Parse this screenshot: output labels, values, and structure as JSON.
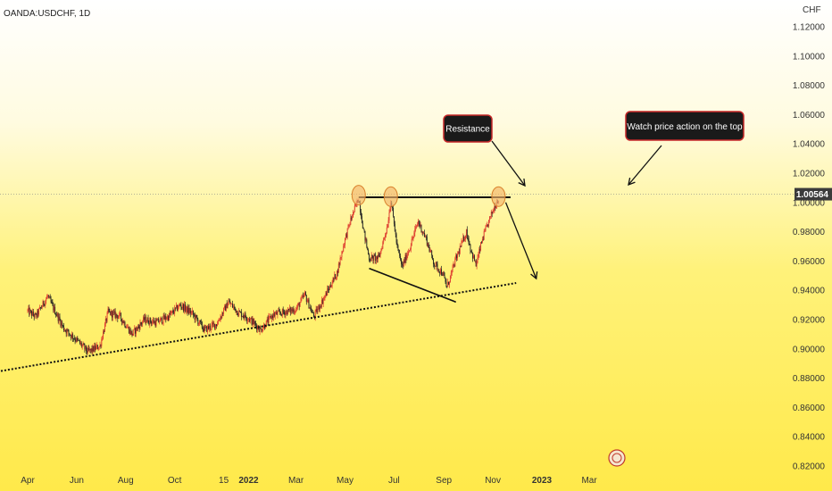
{
  "chart_data": {
    "type": "candlestick",
    "symbol": "OANDA:USDCHF, 1D",
    "currency": "CHF",
    "current_price": "1.00564",
    "y_axis": {
      "ticks": [
        "1.12000",
        "1.10000",
        "1.08000",
        "1.06000",
        "1.04000",
        "1.02000",
        "1.00000",
        "0.98000",
        "0.96000",
        "0.94000",
        "0.92000",
        "0.90000",
        "0.88000",
        "0.86000",
        "0.84000",
        "0.82000"
      ],
      "ylim": [
        0.818,
        1.122
      ]
    },
    "x_axis": {
      "ticks": [
        "Apr",
        "Jun",
        "Aug",
        "Oct",
        "15",
        "2022",
        "Mar",
        "May",
        "Jul",
        "Sep",
        "Nov",
        "2023",
        "Mar"
      ],
      "tick_values": [
        0,
        61,
        122,
        183,
        244,
        275,
        334,
        395,
        456,
        518,
        579,
        640,
        699
      ]
    },
    "price_path": [
      [
        0,
        0.926
      ],
      [
        10,
        0.922
      ],
      [
        25,
        0.936
      ],
      [
        30,
        0.93
      ],
      [
        45,
        0.914
      ],
      [
        61,
        0.906
      ],
      [
        75,
        0.898
      ],
      [
        90,
        0.902
      ],
      [
        100,
        0.925
      ],
      [
        115,
        0.922
      ],
      [
        130,
        0.91
      ],
      [
        145,
        0.92
      ],
      [
        160,
        0.918
      ],
      [
        175,
        0.922
      ],
      [
        190,
        0.93
      ],
      [
        205,
        0.924
      ],
      [
        220,
        0.913
      ],
      [
        235,
        0.917
      ],
      [
        250,
        0.932
      ],
      [
        262,
        0.925
      ],
      [
        275,
        0.921
      ],
      [
        290,
        0.913
      ],
      [
        305,
        0.923
      ],
      [
        318,
        0.925
      ],
      [
        334,
        0.927
      ],
      [
        345,
        0.937
      ],
      [
        356,
        0.922
      ],
      [
        370,
        0.936
      ],
      [
        385,
        0.952
      ],
      [
        395,
        0.975
      ],
      [
        402,
        0.988
      ],
      [
        412,
        1.003
      ],
      [
        418,
        0.981
      ],
      [
        425,
        0.962
      ],
      [
        437,
        0.962
      ],
      [
        448,
        0.985
      ],
      [
        452,
        1.002
      ],
      [
        460,
        0.969
      ],
      [
        466,
        0.956
      ],
      [
        476,
        0.97
      ],
      [
        486,
        0.987
      ],
      [
        496,
        0.975
      ],
      [
        506,
        0.958
      ],
      [
        516,
        0.952
      ],
      [
        522,
        0.942
      ],
      [
        532,
        0.96
      ],
      [
        546,
        0.98
      ],
      [
        552,
        0.967
      ],
      [
        558,
        0.957
      ],
      [
        566,
        0.975
      ],
      [
        574,
        0.987
      ],
      [
        580,
        0.996
      ],
      [
        586,
        1.003
      ]
    ],
    "annotations": {
      "resistance_label": "Resistance",
      "watch_label": "Watch price action on the top",
      "resistance_level": 1.0035,
      "resistance_x_range": [
        412,
        601
      ],
      "peaks": [
        [
          412,
          1.005
        ],
        [
          452,
          1.004
        ],
        [
          586,
          1.004
        ]
      ],
      "support_line": [
        [
          -64,
          0.882
        ],
        [
          608,
          0.945
        ]
      ],
      "lower_trend_line": [
        [
          425,
          0.955
        ],
        [
          533,
          0.932
        ]
      ],
      "projection_arrow": [
        [
          595,
          1.0
        ],
        [
          633,
          0.948
        ]
      ]
    },
    "colors": {
      "up": "#dd3b2e",
      "down": "#222222",
      "resistance_line": "#111111",
      "support_line": "#111111",
      "peak_marker_fill": "#f2b56b",
      "peak_marker_stroke": "#d9812c",
      "callout_bg": "#1a1a1a",
      "callout_border": "#c62828",
      "price_tag_bg": "#3b3b3b"
    }
  }
}
